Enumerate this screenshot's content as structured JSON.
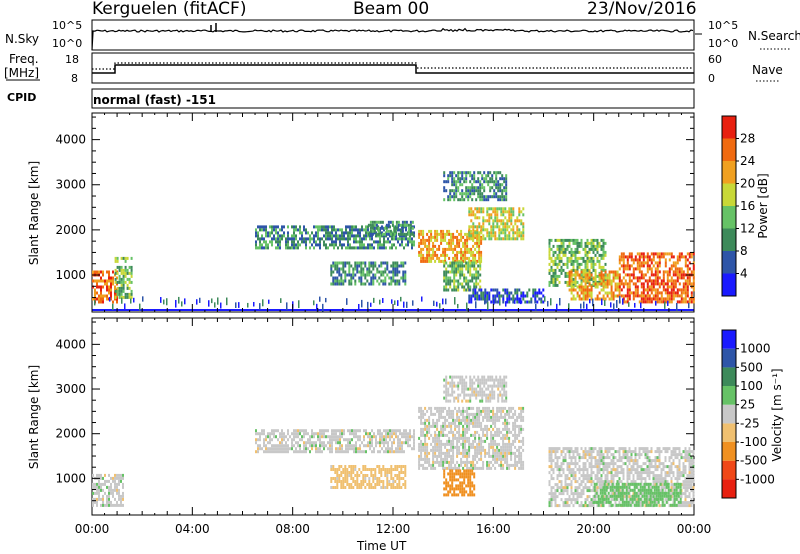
{
  "header": {
    "station": "Kerguelen (fitACF)",
    "beam": "Beam 00",
    "date": "23/Nov/2016"
  },
  "noise_panel": {
    "left_label": "N.Sky",
    "right_label": "N.Search",
    "left_ticks": [
      "10^5",
      "10^0"
    ],
    "right_ticks": [
      "10^5",
      "10^0"
    ]
  },
  "freq_panel": {
    "left_label_line1": "Freq.",
    "left_label_line2": "[MHz]",
    "left_ticks": [
      "18",
      "8"
    ],
    "right_label": "Nave",
    "right_ticks": [
      "60",
      "0"
    ]
  },
  "cpid_panel": {
    "label": "CPID",
    "value": "normal (fast) -151"
  },
  "colors": {
    "power": [
      "#1a1aff",
      "#2e55a8",
      "#3d8a5a",
      "#66c266",
      "#c8d838",
      "#f0a020",
      "#f06a10",
      "#e82010"
    ],
    "velocity": [
      "#e82010",
      "#f04818",
      "#f09020",
      "#f0c070",
      "#c8c8c8",
      "#66c266",
      "#3d8a5a",
      "#2e55a8",
      "#1a1aff"
    ]
  },
  "chart_data": [
    {
      "type": "heatmap",
      "name": "power",
      "ylabel": "Slant Range [km]",
      "yticks": [
        "4000",
        "3000",
        "2000",
        "1000"
      ],
      "ylim": [
        180,
        4590
      ],
      "xticks": [
        "00:00",
        "04:00",
        "08:00",
        "12:00",
        "16:00",
        "20:00",
        "00:00"
      ],
      "xlim": [
        0,
        24
      ],
      "colorbar_label": "Power [dB]",
      "colorbar_ticks": [
        "28",
        "24",
        "20",
        "16",
        "12",
        "8",
        "4"
      ],
      "colorbar_range": [
        0,
        32
      ],
      "echo_regions": [
        {
          "t": [
            0.0,
            1.0
          ],
          "range": [
            400,
            1100
          ],
          "power": 26
        },
        {
          "t": [
            0.9,
            1.6
          ],
          "range": [
            500,
            1400
          ],
          "power": 14
        },
        {
          "t": [
            6.5,
            12.8
          ],
          "range": [
            1600,
            2100
          ],
          "power": 8
        },
        {
          "t": [
            11.0,
            12.8
          ],
          "range": [
            1900,
            2200
          ],
          "power": 10
        },
        {
          "t": [
            9.5,
            12.5
          ],
          "range": [
            800,
            1300
          ],
          "power": 9
        },
        {
          "t": [
            13.0,
            15.5
          ],
          "range": [
            1300,
            2000
          ],
          "power": 22
        },
        {
          "t": [
            15.0,
            17.2
          ],
          "range": [
            1800,
            2500
          ],
          "power": 16
        },
        {
          "t": [
            14.0,
            16.5
          ],
          "range": [
            2700,
            3300
          ],
          "power": 8
        },
        {
          "t": [
            14.0,
            15.5
          ],
          "range": [
            700,
            1300
          ],
          "power": 14
        },
        {
          "t": [
            15.0,
            18.0
          ],
          "range": [
            400,
            700
          ],
          "power": 6
        },
        {
          "t": [
            18.2,
            20.5
          ],
          "range": [
            800,
            1800
          ],
          "power": 14
        },
        {
          "t": [
            19.0,
            21.0
          ],
          "range": [
            500,
            1100
          ],
          "power": 20
        },
        {
          "t": [
            21.0,
            24.0
          ],
          "range": [
            400,
            1500
          ],
          "power": 26
        }
      ]
    },
    {
      "type": "heatmap",
      "name": "velocity",
      "ylabel": "Slant Range [km]",
      "yticks": [
        "4000",
        "3000",
        "2000",
        "1000"
      ],
      "ylim": [
        180,
        4590
      ],
      "xticks": [
        "00:00",
        "04:00",
        "08:00",
        "12:00",
        "16:00",
        "20:00",
        "00:00"
      ],
      "xlim": [
        0,
        24
      ],
      "xlabel": "Time UT",
      "colorbar_label": "Velocity [m s⁻¹]",
      "colorbar_ticks": [
        "1000",
        "500",
        "100",
        "25",
        "-25",
        "-100",
        "-500",
        "-1000"
      ],
      "colorbar_range": [
        -1200,
        1200
      ],
      "echo_regions": [
        {
          "t": [
            0.0,
            1.2
          ],
          "range": [
            400,
            1100
          ],
          "velocity": 0
        },
        {
          "t": [
            6.5,
            12.8
          ],
          "range": [
            1600,
            2100
          ],
          "velocity": 0
        },
        {
          "t": [
            9.5,
            12.5
          ],
          "range": [
            800,
            1300
          ],
          "velocity": -50
        },
        {
          "t": [
            13.0,
            17.2
          ],
          "range": [
            1200,
            2600
          ],
          "velocity": 0
        },
        {
          "t": [
            14.0,
            16.5
          ],
          "range": [
            2700,
            3300
          ],
          "velocity": 0
        },
        {
          "t": [
            14.0,
            15.2
          ],
          "range": [
            600,
            1200
          ],
          "velocity": -200
        },
        {
          "t": [
            18.2,
            24.0
          ],
          "range": [
            400,
            1700
          ],
          "velocity": 0
        },
        {
          "t": [
            20.0,
            23.5
          ],
          "range": [
            400,
            900
          ],
          "velocity": 60
        }
      ]
    }
  ]
}
